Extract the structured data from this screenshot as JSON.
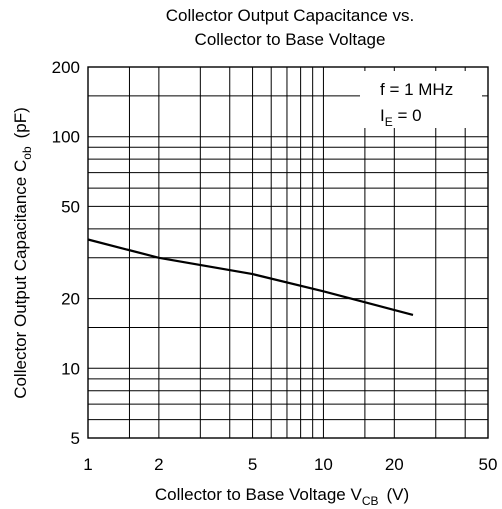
{
  "chart_data": {
    "type": "line",
    "title_line1": "Collector Output Capacitance vs.",
    "title_line2": "Collector to Base Voltage",
    "xlabel": {
      "text": "Collector to Base Voltage  V",
      "sub": "CB",
      "unit": "(V)"
    },
    "ylabel": {
      "text": "Collector Output Capacitance  C",
      "sub": "ob",
      "unit": "(pF)"
    },
    "x_scale": "log",
    "y_scale": "log",
    "xlim": [
      1,
      50
    ],
    "ylim": [
      5,
      200
    ],
    "x_ticks": [
      {
        "value": 1,
        "label": "1"
      },
      {
        "value": 2,
        "label": "2"
      },
      {
        "value": 5,
        "label": "5"
      },
      {
        "value": 10,
        "label": "10"
      },
      {
        "value": 20,
        "label": "20"
      },
      {
        "value": 50,
        "label": "50"
      }
    ],
    "y_ticks": [
      {
        "value": 5,
        "label": "5"
      },
      {
        "value": 10,
        "label": "10"
      },
      {
        "value": 20,
        "label": "20"
      },
      {
        "value": 50,
        "label": "50"
      },
      {
        "value": 100,
        "label": "100"
      },
      {
        "value": 200,
        "label": "200"
      }
    ],
    "x_grid": [
      1.5,
      2,
      3,
      4,
      5,
      6,
      7,
      8,
      9,
      10,
      15,
      20,
      30,
      40
    ],
    "y_grid": [
      6,
      7,
      8,
      9,
      10,
      15,
      20,
      30,
      40,
      50,
      60,
      70,
      80,
      90,
      100,
      150
    ],
    "grid": true,
    "annotation": {
      "line1": "f = 1 MHz",
      "line2_main": "I",
      "line2_sub": "E",
      "line2_rest": " = 0"
    },
    "series": [
      {
        "x": [
          1,
          2,
          5,
          10,
          24
        ],
        "y": [
          36,
          30,
          25.5,
          21.5,
          17
        ]
      }
    ]
  }
}
